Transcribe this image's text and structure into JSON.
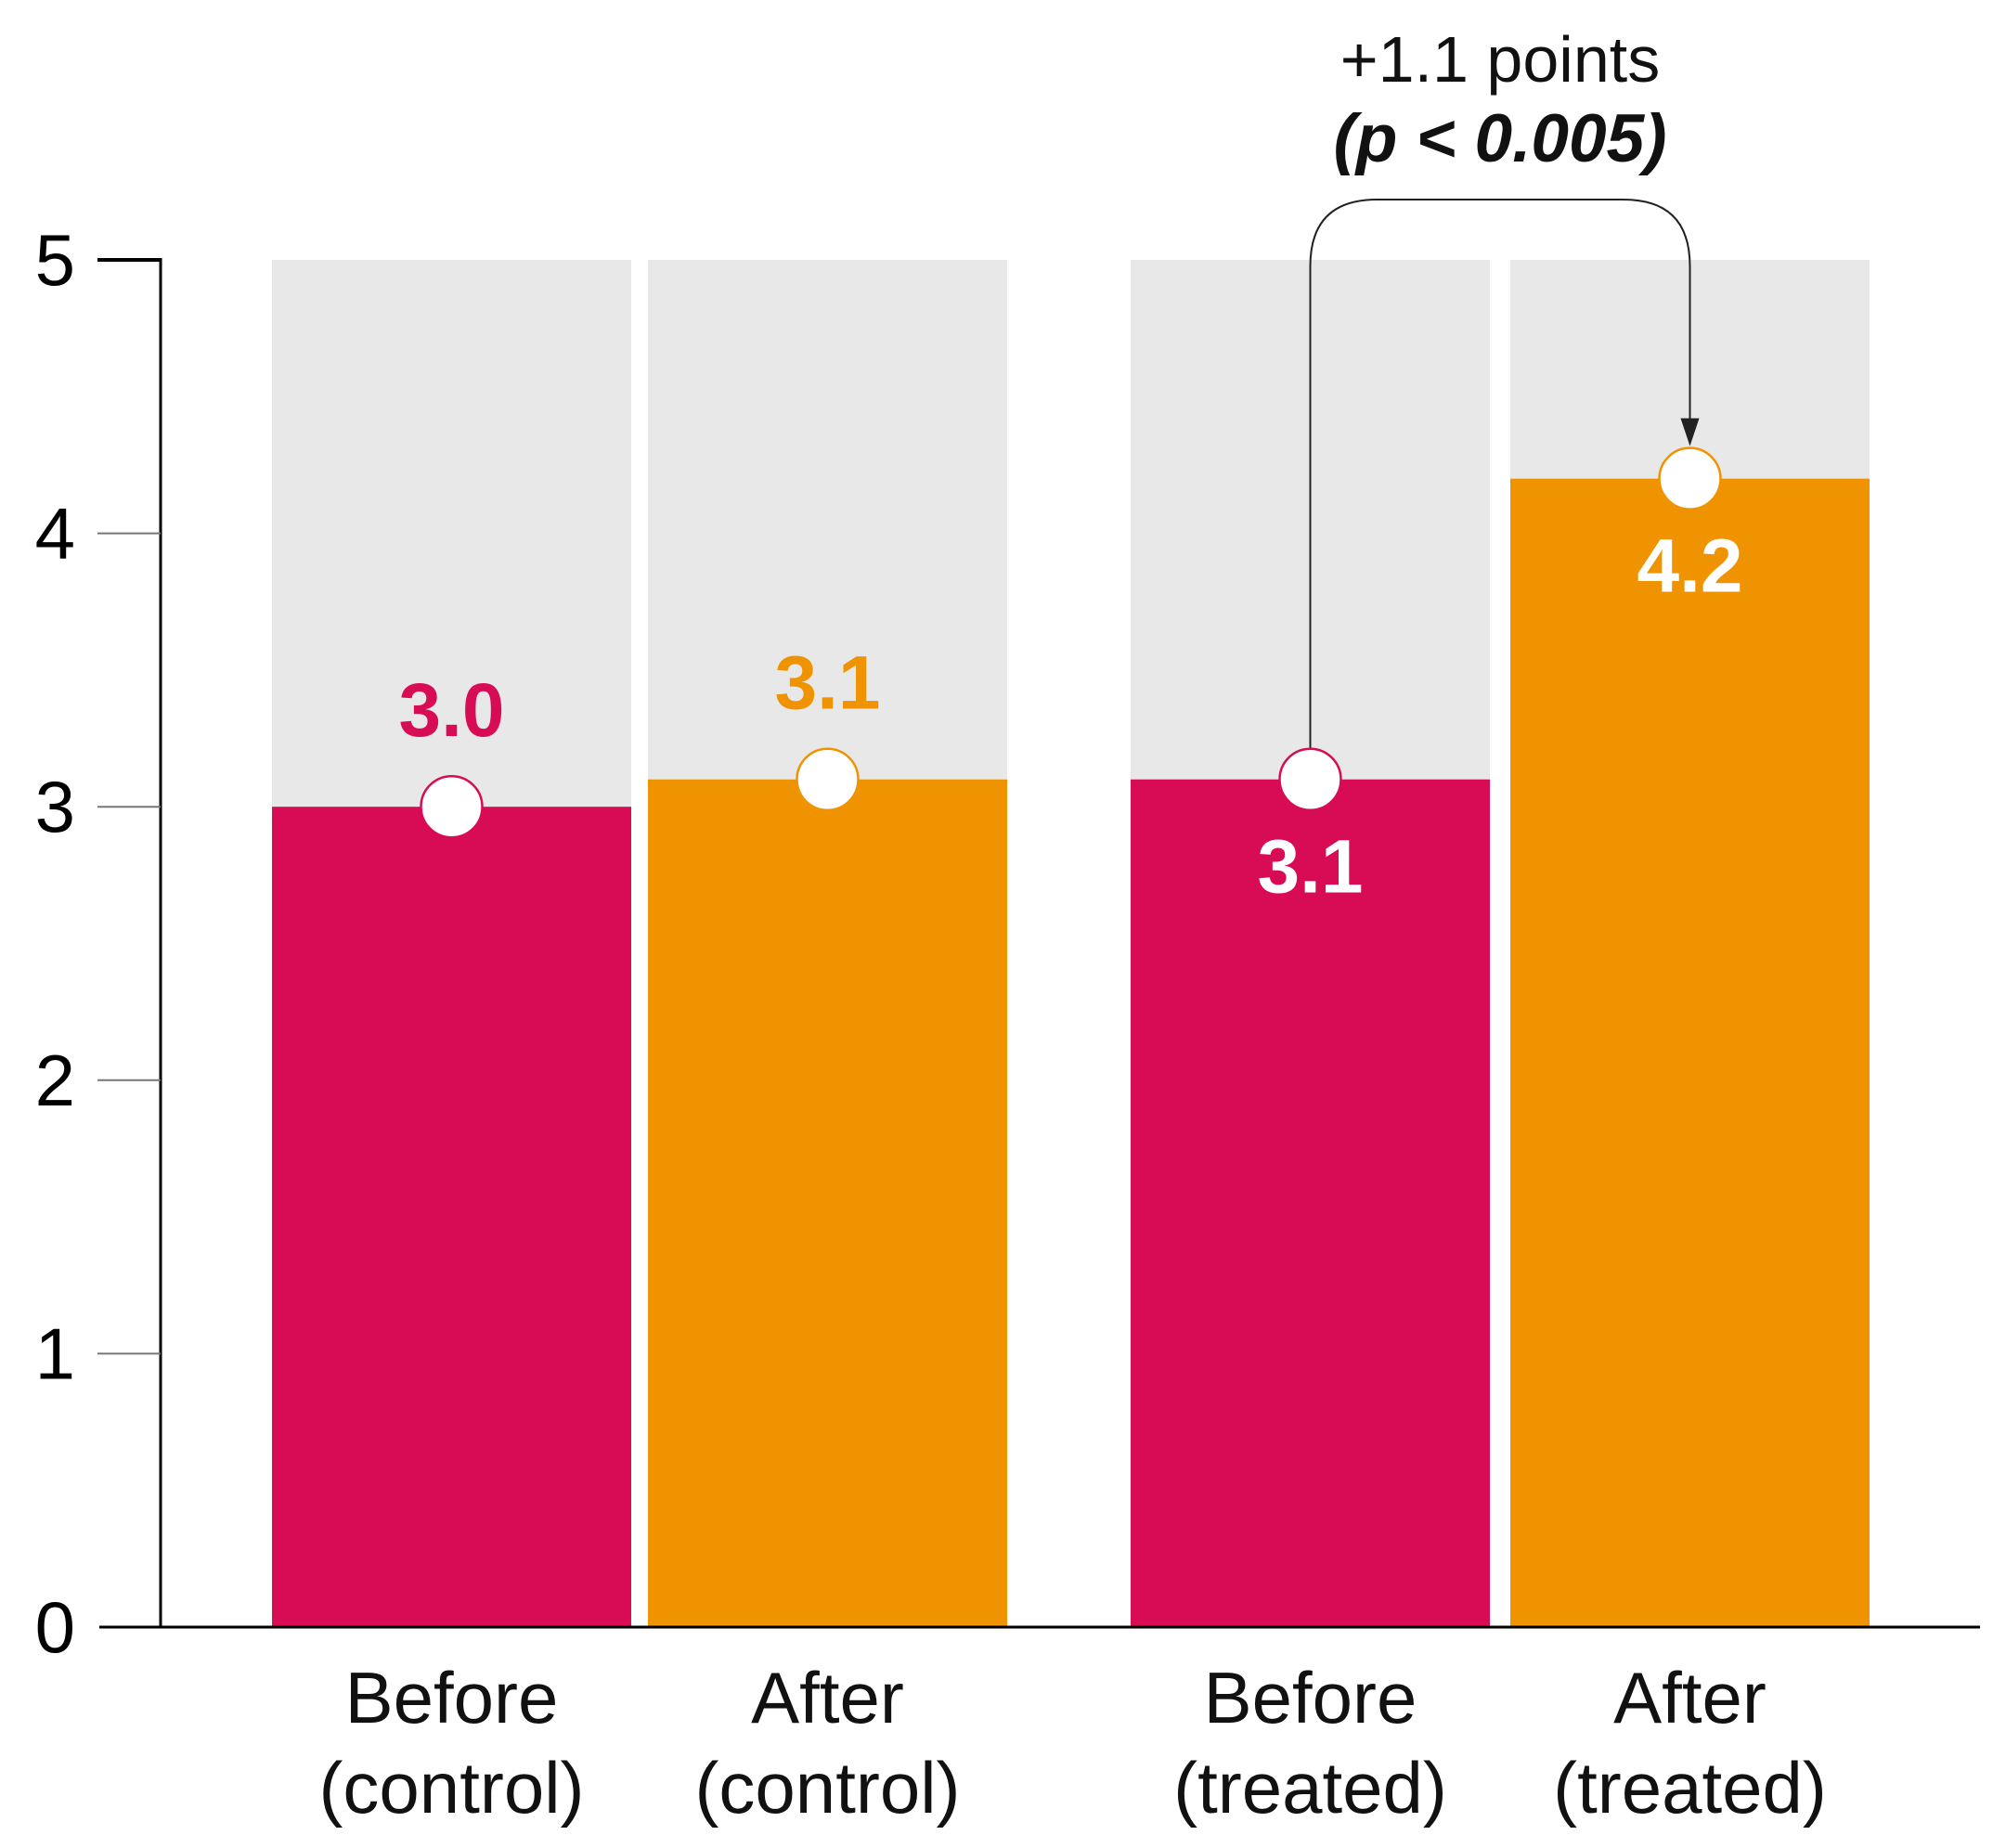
{
  "chart_data": {
    "type": "bar",
    "title": "",
    "categories": [
      [
        "Before",
        "(control)"
      ],
      [
        "After",
        "(control)"
      ],
      [
        "Before",
        "(treated)"
      ],
      [
        "After",
        "(treated)"
      ]
    ],
    "values": [
      3.0,
      3.1,
      3.1,
      4.2
    ],
    "value_labels": [
      "3.0",
      "3.1",
      "3.1",
      "4.2"
    ],
    "bar_colors": [
      "#d80b55",
      "#f09300",
      "#d80b55",
      "#f09300"
    ],
    "value_label_colors": [
      "#d80b55",
      "#f09300",
      "#ffffff",
      "#ffffff"
    ],
    "value_label_position": [
      "above",
      "above",
      "below",
      "below"
    ],
    "background_bar_color": "#e9e8e8",
    "marker": {
      "fill": "#ffffff",
      "radius": 33,
      "stroke_width": 2.5
    },
    "ylim": [
      0,
      5
    ],
    "yticks": [
      "0",
      "1",
      "2",
      "3",
      "4",
      "5"
    ],
    "grid": false,
    "legend": "none",
    "annotation": {
      "line1": "+1.1 points",
      "line2": "(p < 0.005)",
      "from_bar": 2,
      "to_bar": 3
    }
  },
  "colors": {
    "axis": "#000000",
    "tick_minor": "#777777",
    "arrow": "#222222",
    "label_text": "#111111"
  }
}
